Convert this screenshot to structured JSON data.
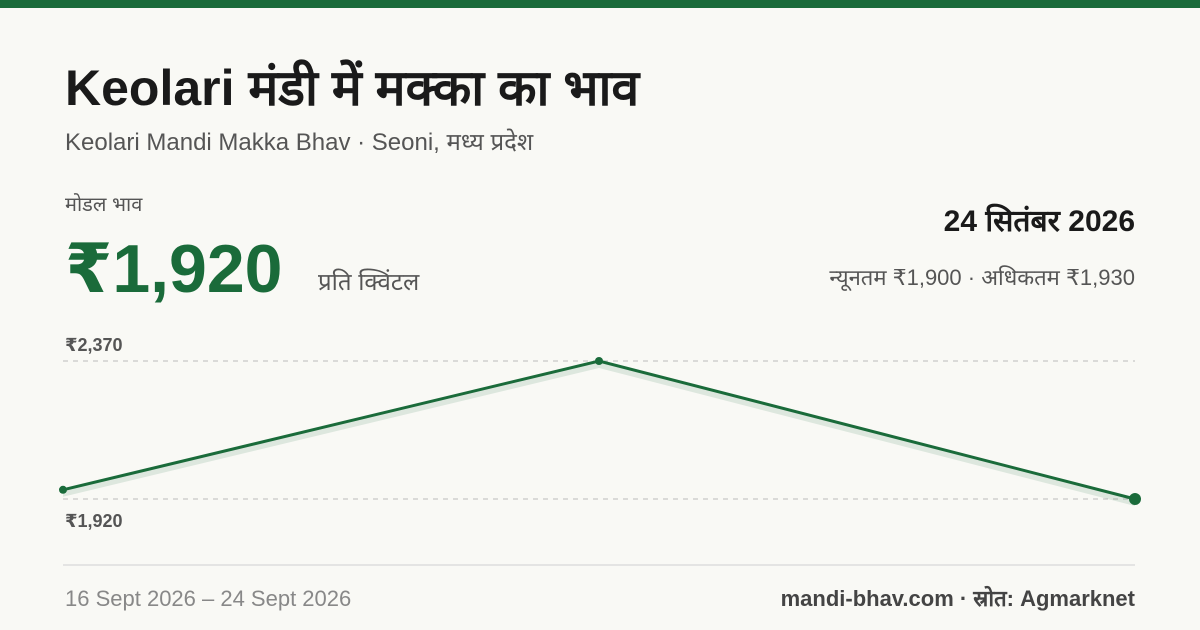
{
  "header": {
    "title": "Keolari मंडी में मक्का का भाव",
    "subtitle": "Keolari Mandi Makka Bhav · Seoni, मध्य प्रदेश",
    "price_label": "मोडल भाव",
    "price": "₹1,920",
    "price_unit": "प्रति क्विंटल",
    "date": "24 सितंबर 2026",
    "range": "न्यूनतम ₹1,900 · अधिकतम ₹1,930"
  },
  "chart_data": {
    "type": "line",
    "categories": [
      null,
      null,
      null
    ],
    "values": [
      1950,
      2370,
      1920
    ],
    "color": "#1a6b3a",
    "ylim": [
      1920,
      2370
    ],
    "yticks": [
      {
        "value": 2370,
        "label": "₹2,370"
      },
      {
        "value": 1920,
        "label": "₹1,920"
      }
    ],
    "grid": true
  },
  "footer": {
    "date_range": "16 Sept 2026 – 24 Sept 2026",
    "source": "mandi-bhav.com · स्रोत: Agmarknet"
  }
}
